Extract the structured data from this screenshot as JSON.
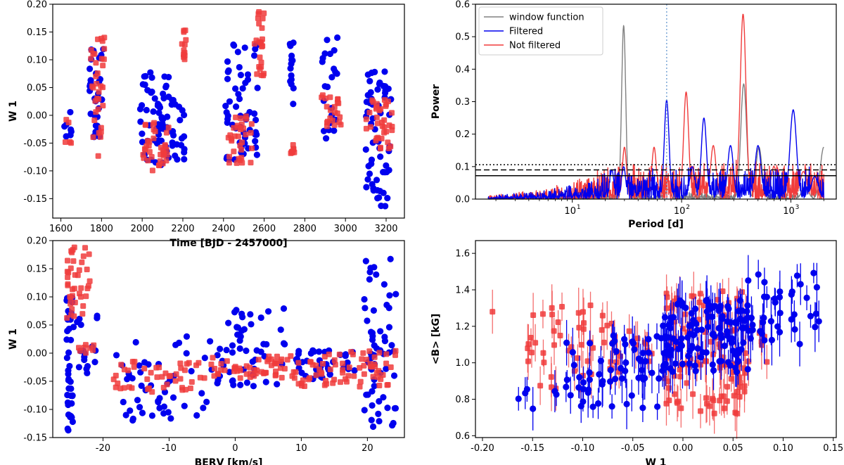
{
  "colors": {
    "filtered": "#0000ee",
    "not_filtered": "#f03c3c",
    "window_function": "#808080",
    "vline": "#7aa6d6"
  },
  "chart_data": [
    {
      "type": "scatter",
      "xlabel": "Time [BJD - 2457000]",
      "ylabel": "W 1",
      "xlim": [
        1560,
        3290
      ],
      "ylim": [
        -0.185,
        0.2
      ],
      "xticks": [
        "1600",
        "1800",
        "2000",
        "2200",
        "2400",
        "2600",
        "2800",
        "3000",
        "3200"
      ],
      "yticks": [
        "-0.15",
        "-0.10",
        "-0.05",
        "0.00",
        "0.05",
        "0.10",
        "0.15",
        "0.20"
      ],
      "series": [
        {
          "key": "filtered",
          "marker": "circle",
          "clusters": [
            {
              "x": [
                1615,
                1660
              ],
              "y": [
                -0.05,
                0.02
              ],
              "n": 7
            },
            {
              "x": [
                1740,
                1810
              ],
              "y": [
                -0.05,
                0.12
              ],
              "n": 34
            },
            {
              "x": [
                1990,
                2130
              ],
              "y": [
                -0.09,
                0.08
              ],
              "n": 60
            },
            {
              "x": [
                2140,
                2210
              ],
              "y": [
                -0.08,
                0.04
              ],
              "n": 22
            },
            {
              "x": [
                2410,
                2570
              ],
              "y": [
                -0.08,
                0.13
              ],
              "n": 58
            },
            {
              "x": [
                2725,
                2745
              ],
              "y": [
                0.01,
                0.135
              ],
              "n": 14
            },
            {
              "x": [
                2880,
                2960
              ],
              "y": [
                -0.075,
                0.14
              ],
              "n": 22
            },
            {
              "x": [
                3100,
                3225
              ],
              "y": [
                -0.175,
                0.08
              ],
              "n": 60
            }
          ]
        },
        {
          "key": "not_filtered",
          "marker": "square",
          "clusters": [
            {
              "x": [
                1620,
                1660
              ],
              "y": [
                -0.05,
                -0.005
              ],
              "n": 5
            },
            {
              "x": [
                1745,
                1820
              ],
              "y": [
                -0.08,
                0.145
              ],
              "n": 34
            },
            {
              "x": [
                2000,
                2130
              ],
              "y": [
                -0.11,
                -0.01
              ],
              "n": 36
            },
            {
              "x": [
                2195,
                2215
              ],
              "y": [
                0.09,
                0.155
              ],
              "n": 12
            },
            {
              "x": [
                2420,
                2540
              ],
              "y": [
                -0.09,
                0.0
              ],
              "n": 32
            },
            {
              "x": [
                2550,
                2600
              ],
              "y": [
                0.07,
                0.19
              ],
              "n": 24
            },
            {
              "x": [
                2730,
                2750
              ],
              "y": [
                -0.07,
                -0.05
              ],
              "n": 8
            },
            {
              "x": [
                2880,
                2980
              ],
              "y": [
                -0.02,
                0.04
              ],
              "n": 22
            },
            {
              "x": [
                3100,
                3230
              ],
              "y": [
                -0.06,
                0.03
              ],
              "n": 36
            }
          ]
        }
      ]
    },
    {
      "type": "line",
      "xlabel": "Period [d]",
      "ylabel": "Power",
      "xscale": "log",
      "xlim": [
        1.3,
        2600
      ],
      "ylim": [
        0,
        0.6
      ],
      "xticks": [
        "10",
        "10",
        "10"
      ],
      "xtick_exponents": [
        "1",
        "2",
        "3"
      ],
      "xtick_values": [
        10,
        100,
        1000
      ],
      "yticks": [
        "0.0",
        "0.1",
        "0.2",
        "0.3",
        "0.4",
        "0.5",
        "0.6"
      ],
      "legend": {
        "position": "top-left",
        "entries": [
          {
            "key": "window_function",
            "label": "window function"
          },
          {
            "key": "filtered",
            "label": "Filtered"
          },
          {
            "key": "not_filtered",
            "label": "Not filtered"
          }
        ]
      },
      "hlines": [
        {
          "y": 0.072,
          "style": "solid"
        },
        {
          "y": 0.09,
          "style": "dashed"
        },
        {
          "y": 0.106,
          "style": "dotted"
        }
      ],
      "vline": {
        "x": 73,
        "style": "dotted"
      },
      "peaks": {
        "window_function": [
          [
            29.5,
            0.535
          ],
          [
            75,
            0.03
          ],
          [
            370,
            0.355
          ],
          [
            510,
            0.16
          ],
          [
            1350,
            0.04
          ],
          [
            2000,
            0.16
          ]
        ],
        "filtered": [
          [
            23,
            0.09
          ],
          [
            29.5,
            0.1
          ],
          [
            73,
            0.305
          ],
          [
            125,
            0.1
          ],
          [
            160,
            0.25
          ],
          [
            280,
            0.165
          ],
          [
            500,
            0.165
          ],
          [
            1050,
            0.275
          ],
          [
            1650,
            0.07
          ]
        ],
        "not_filtered": [
          [
            30,
            0.16
          ],
          [
            56,
            0.16
          ],
          [
            110,
            0.33
          ],
          [
            195,
            0.165
          ],
          [
            365,
            0.57
          ],
          [
            700,
            0.1
          ],
          [
            1300,
            0.085
          ]
        ]
      }
    },
    {
      "type": "scatter",
      "xlabel": "BERV [km/s]",
      "ylabel": "W 1",
      "xlim": [
        -27.6,
        25.6
      ],
      "ylim": [
        -0.15,
        0.2
      ],
      "xticks": [
        "-20",
        "-10",
        "0",
        "10",
        "20"
      ],
      "yticks": [
        "-0.15",
        "-0.10",
        "-0.05",
        "0.00",
        "0.05",
        "0.10",
        "0.15",
        "0.20"
      ],
      "series": [
        {
          "key": "filtered",
          "marker": "circle",
          "clusters": [
            {
              "x": [
                -25.5,
                -24.5
              ],
              "y": [
                -0.14,
                0.1
              ],
              "n": 40
            },
            {
              "x": [
                -24.5,
                -20.5
              ],
              "y": [
                -0.04,
                0.07
              ],
              "n": 18
            },
            {
              "x": [
                -18,
                -4
              ],
              "y": [
                -0.12,
                0.03
              ],
              "n": 48
            },
            {
              "x": [
                -4,
                7.5
              ],
              "y": [
                -0.06,
                0.09
              ],
              "n": 55
            },
            {
              "x": [
                9,
                19
              ],
              "y": [
                -0.05,
                0.005
              ],
              "n": 40
            },
            {
              "x": [
                19.5,
                24.3
              ],
              "y": [
                -0.135,
                0.175
              ],
              "n": 60
            }
          ]
        },
        {
          "key": "not_filtered",
          "marker": "square",
          "clusters": [
            {
              "x": [
                -25.5,
                -22
              ],
              "y": [
                0.06,
                0.19
              ],
              "n": 40
            },
            {
              "x": [
                -24,
                -20
              ],
              "y": [
                0.0,
                0.02
              ],
              "n": 8
            },
            {
              "x": [
                -18.5,
                -6
              ],
              "y": [
                -0.07,
                -0.015
              ],
              "n": 42
            },
            {
              "x": [
                -6,
                9
              ],
              "y": [
                -0.045,
                -0.005
              ],
              "n": 60
            },
            {
              "x": [
                9,
                24.3
              ],
              "y": [
                -0.06,
                0.005
              ],
              "n": 70
            }
          ]
        }
      ]
    },
    {
      "type": "scatter",
      "xlabel": "W 1",
      "ylabel": "<B> [kG]",
      "xlim": [
        -0.207,
        0.153
      ],
      "ylim": [
        0.59,
        1.67
      ],
      "xticks": [
        "-0.20",
        "-0.15",
        "-0.10",
        "-0.05",
        "0.00",
        "0.05",
        "0.10",
        "0.15"
      ],
      "yticks": [
        "0.6",
        "0.8",
        "1.0",
        "1.2",
        "1.4",
        "1.6"
      ],
      "errorbar": true,
      "series": [
        {
          "key": "not_filtered",
          "marker": "square",
          "clusters": [
            {
              "x": [
                -0.19,
                -0.19
              ],
              "y": [
                1.28,
                1.28
              ],
              "n": 1
            },
            {
              "x": [
                -0.155,
                -0.08
              ],
              "y": [
                0.85,
                1.32
              ],
              "n": 40
            },
            {
              "x": [
                -0.08,
                -0.03
              ],
              "y": [
                0.95,
                1.25
              ],
              "n": 20
            },
            {
              "x": [
                -0.02,
                0.065
              ],
              "y": [
                0.72,
                1.4
              ],
              "n": 110
            },
            {
              "x": [
                0.065,
                0.085
              ],
              "y": [
                0.95,
                1.2
              ],
              "n": 6
            }
          ]
        },
        {
          "key": "filtered",
          "marker": "circle",
          "clusters": [
            {
              "x": [
                -0.175,
                -0.12
              ],
              "y": [
                0.73,
                0.86
              ],
              "n": 6
            },
            {
              "x": [
                -0.12,
                -0.02
              ],
              "y": [
                0.75,
                1.15
              ],
              "n": 60
            },
            {
              "x": [
                -0.02,
                0.065
              ],
              "y": [
                0.95,
                1.35
              ],
              "n": 120
            },
            {
              "x": [
                0.065,
                0.14
              ],
              "y": [
                1.1,
                1.5
              ],
              "n": 40
            }
          ]
        }
      ]
    }
  ]
}
